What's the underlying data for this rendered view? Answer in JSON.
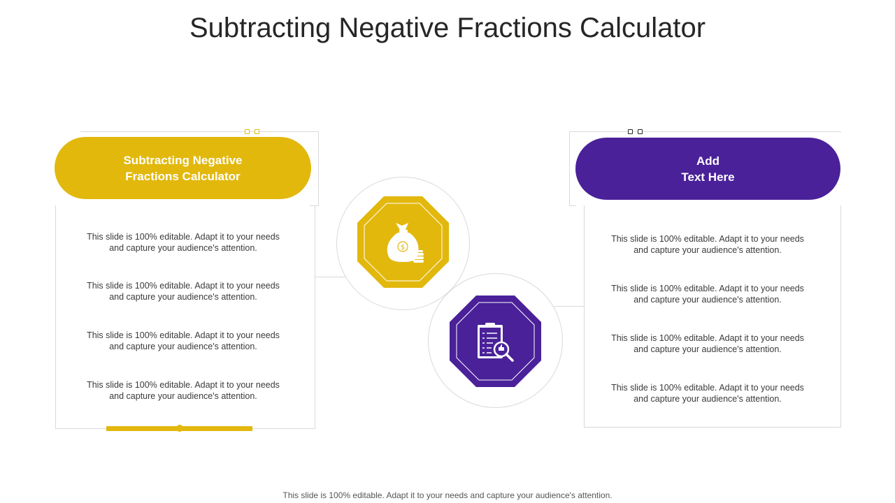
{
  "title": "Subtracting Negative Fractions Calculator",
  "left_card": {
    "heading": "Subtracting Negative\nFractions Calculator",
    "items": [
      "This slide is 100% editable. Adapt it to your needs\nand capture your audience's attention.",
      "This slide is 100% editable. Adapt it to your needs\nand capture your audience's attention.",
      "This slide is 100% editable. Adapt it to your needs\nand capture your audience's attention.",
      "This slide is 100% editable. Adapt it to your needs\nand capture your audience's attention."
    ]
  },
  "right_card": {
    "heading": "Add\nText Here",
    "items": [
      "This slide is 100% editable. Adapt it to your needs\nand capture your audience's attention.",
      "This slide is 100% editable. Adapt it to your needs\nand capture your audience's attention.",
      "This slide is 100% editable. Adapt it to your needs\nand capture your audience's attention.",
      "This slide is 100% editable. Adapt it to your needs\nand capture your audience's attention."
    ]
  },
  "icons": {
    "top": "money-bag-icon",
    "bottom": "clipboard-search-icon"
  },
  "colors": {
    "accent_yellow": "#e2b80d",
    "accent_purple": "#4a2199",
    "line_gray": "#d9d9d9"
  },
  "footer": "This slide is 100% editable. Adapt it to your needs and capture your audience's attention."
}
